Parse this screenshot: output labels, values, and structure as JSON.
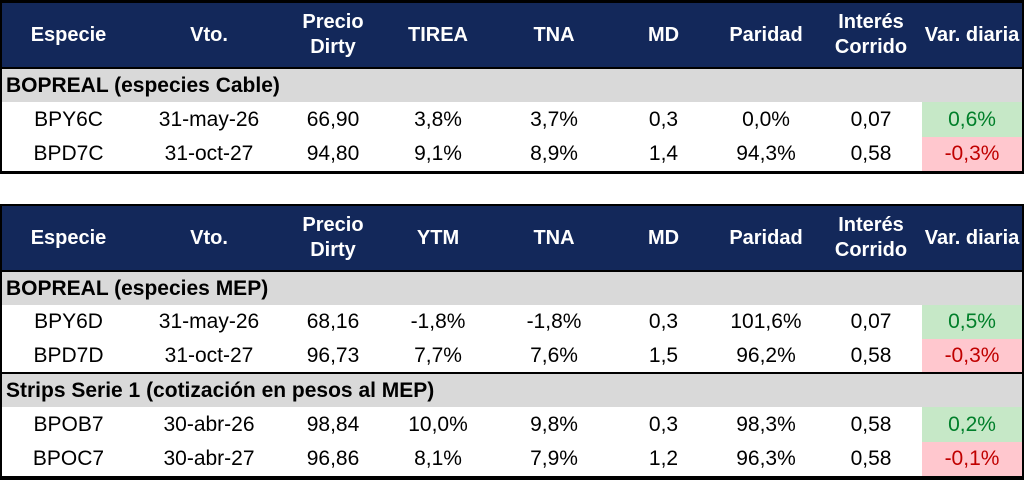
{
  "colors": {
    "header_bg": "#13285A",
    "header_text": "#FFFFFF",
    "section_bg": "#D9D9D9",
    "positive_bg": "#C6E8C7",
    "positive_text": "#007F2A",
    "negative_bg": "#FFC7CE",
    "negative_text": "#C00000",
    "border": "#000000"
  },
  "tables": [
    {
      "headers": [
        "Especie",
        "Vto.",
        "Precio Dirty",
        "TIREA",
        "TNA",
        "MD",
        "Paridad",
        "Interés Corrido",
        "Var. diaria"
      ],
      "sections": [
        {
          "title": "BOPREAL (especies Cable)",
          "rows": [
            {
              "cells": [
                "BPY6C",
                "31-may-26",
                "66,90",
                "3,8%",
                "3,7%",
                "0,3",
                "0,0%",
                "0,07"
              ],
              "var": {
                "value": "0,6%",
                "direction": "positive"
              }
            },
            {
              "cells": [
                "BPD7C",
                "31-oct-27",
                "94,80",
                "9,1%",
                "8,9%",
                "1,4",
                "94,3%",
                "0,58"
              ],
              "var": {
                "value": "-0,3%",
                "direction": "negative"
              }
            }
          ]
        }
      ]
    },
    {
      "headers": [
        "Especie",
        "Vto.",
        "Precio Dirty",
        "YTM",
        "TNA",
        "MD",
        "Paridad",
        "Interés Corrido",
        "Var. diaria"
      ],
      "sections": [
        {
          "title": "BOPREAL (especies MEP)",
          "rows": [
            {
              "cells": [
                "BPY6D",
                "31-may-26",
                "68,16",
                "-1,8%",
                "-1,8%",
                "0,3",
                "101,6%",
                "0,07"
              ],
              "var": {
                "value": "0,5%",
                "direction": "positive"
              }
            },
            {
              "cells": [
                "BPD7D",
                "31-oct-27",
                "96,73",
                "7,7%",
                "7,6%",
                "1,5",
                "96,2%",
                "0,58"
              ],
              "var": {
                "value": "-0,3%",
                "direction": "negative"
              }
            }
          ]
        },
        {
          "title": "Strips Serie 1 (cotización en pesos al MEP)",
          "rows": [
            {
              "cells": [
                "BPOB7",
                "30-abr-26",
                "98,84",
                "10,0%",
                "9,8%",
                "0,3",
                "98,3%",
                "0,58"
              ],
              "var": {
                "value": "0,2%",
                "direction": "positive"
              }
            },
            {
              "cells": [
                "BPOC7",
                "30-abr-27",
                "96,86",
                "8,1%",
                "7,9%",
                "1,2",
                "96,3%",
                "0,58"
              ],
              "var": {
                "value": "-0,1%",
                "direction": "negative"
              }
            }
          ]
        }
      ]
    }
  ]
}
